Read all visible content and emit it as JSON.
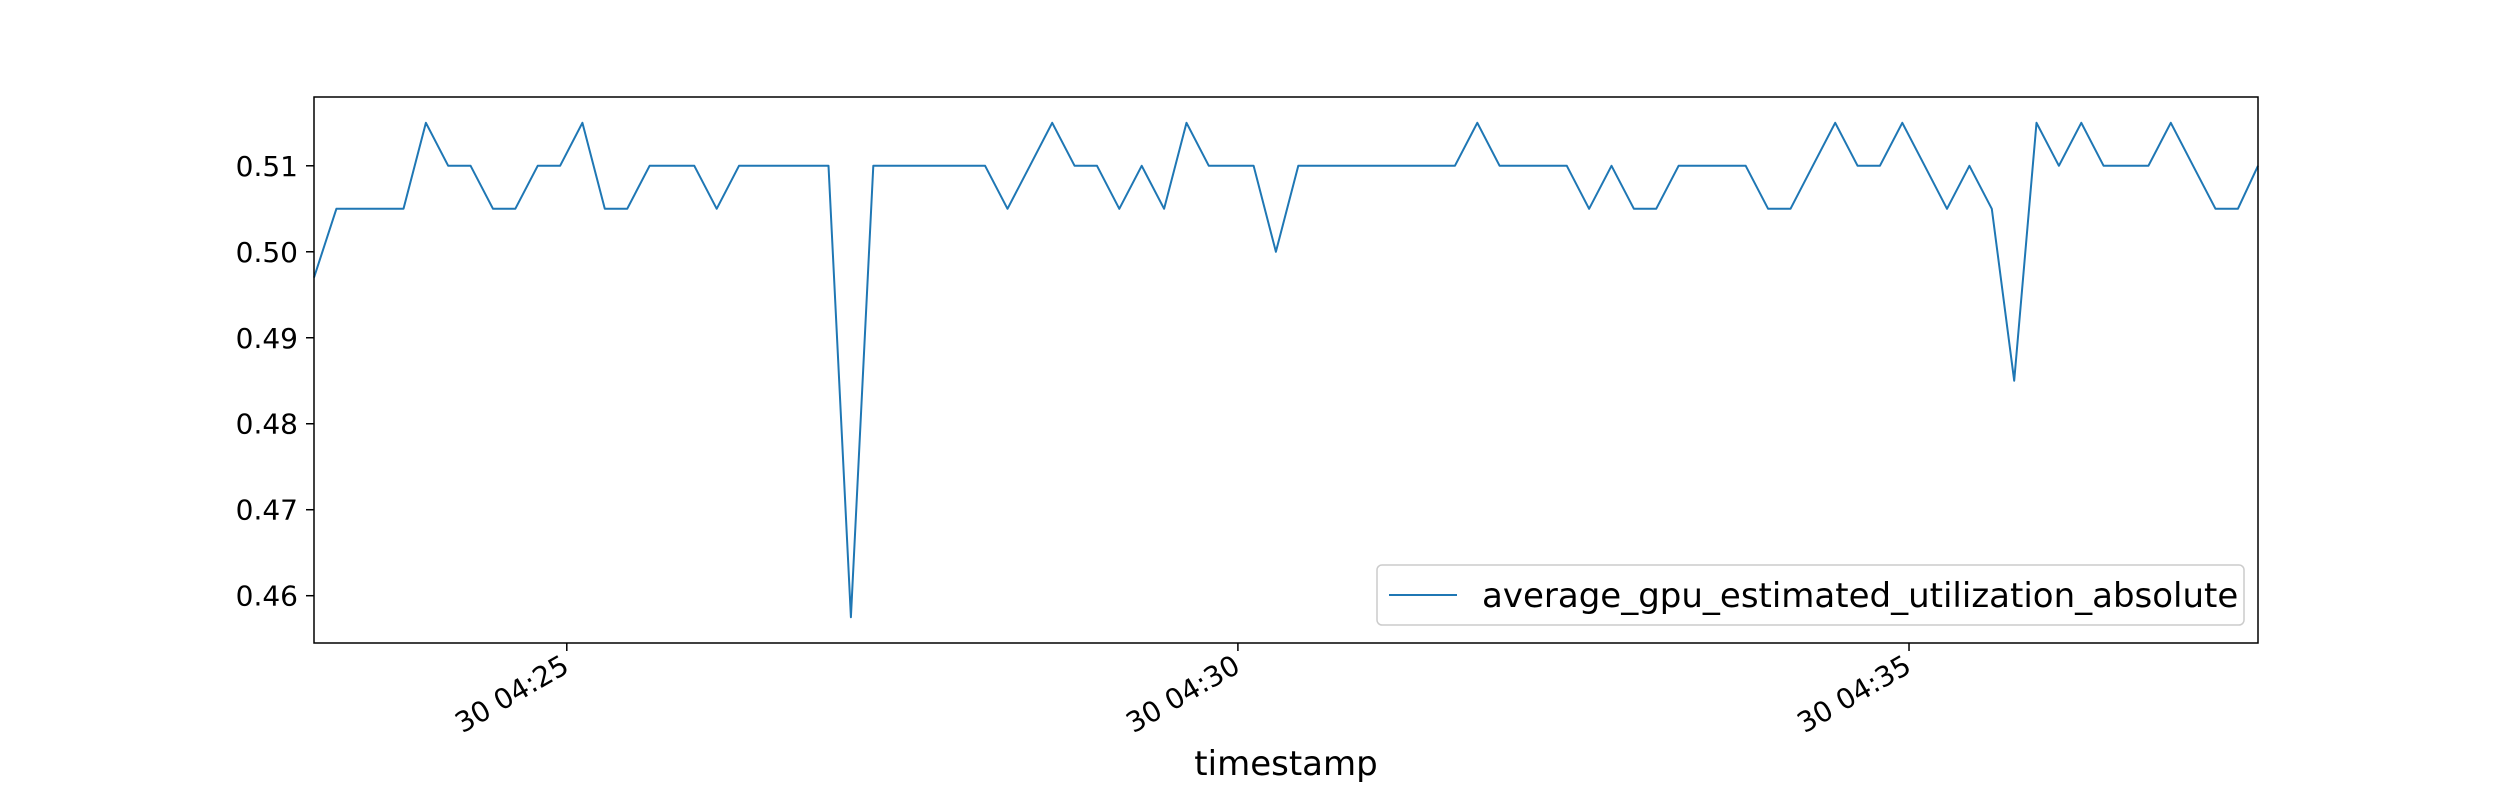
{
  "chart_data": {
    "type": "line",
    "title": "",
    "xlabel": "timestamp",
    "ylabel": "",
    "grid": false,
    "legend_placement": "lower-right",
    "series_color": "#1f77b4",
    "x_unit": "minutes",
    "xlim": [
      "04:23:07",
      "04:37:36"
    ],
    "ylim": [
      0.4545,
      0.518
    ],
    "x_ticks": [
      {
        "value": "04:25:00",
        "label": "30 04:25"
      },
      {
        "value": "04:30:00",
        "label": "30 04:30"
      },
      {
        "value": "04:35:00",
        "label": "30 04:35"
      }
    ],
    "y_ticks": [
      {
        "value": 0.46,
        "label": "0.46"
      },
      {
        "value": 0.47,
        "label": "0.47"
      },
      {
        "value": 0.48,
        "label": "0.48"
      },
      {
        "value": 0.49,
        "label": "0.49"
      },
      {
        "value": 0.5,
        "label": "0.50"
      },
      {
        "value": 0.51,
        "label": "0.51"
      }
    ],
    "series": [
      {
        "name": "average_gpu_estimated_utilization_absolute",
        "x": [
          "04:23:07",
          "04:23:17",
          "04:23:27",
          "04:23:37",
          "04:23:47",
          "04:23:57",
          "04:24:07",
          "04:24:17",
          "04:24:27",
          "04:24:37",
          "04:24:47",
          "04:24:57",
          "04:25:07",
          "04:25:17",
          "04:25:27",
          "04:25:37",
          "04:25:47",
          "04:25:57",
          "04:26:07",
          "04:26:17",
          "04:26:27",
          "04:26:37",
          "04:26:47",
          "04:26:57",
          "04:27:07",
          "04:27:17",
          "04:27:27",
          "04:27:37",
          "04:27:47",
          "04:27:57",
          "04:28:07",
          "04:28:17",
          "04:28:27",
          "04:28:37",
          "04:28:47",
          "04:28:57",
          "04:29:07",
          "04:29:17",
          "04:29:27",
          "04:29:37",
          "04:29:47",
          "04:29:57",
          "04:30:07",
          "04:30:17",
          "04:30:27",
          "04:30:37",
          "04:30:47",
          "04:30:57",
          "04:31:07",
          "04:31:17",
          "04:31:27",
          "04:31:37",
          "04:31:47",
          "04:31:57",
          "04:32:07",
          "04:32:17",
          "04:32:27",
          "04:32:37",
          "04:32:47",
          "04:32:57",
          "04:33:07",
          "04:33:17",
          "04:33:27",
          "04:33:37",
          "04:33:47",
          "04:33:57",
          "04:34:07",
          "04:34:17",
          "04:34:27",
          "04:34:37",
          "04:34:47",
          "04:34:57",
          "04:35:07",
          "04:35:17",
          "04:35:27",
          "04:35:37",
          "04:35:47",
          "04:35:57",
          "04:36:07",
          "04:36:17",
          "04:36:27",
          "04:36:37",
          "04:36:47",
          "04:36:57",
          "04:37:07",
          "04:37:17",
          "04:37:27",
          "04:37:36"
        ],
        "y": [
          0.497,
          0.505,
          0.505,
          0.505,
          0.505,
          0.515,
          0.51,
          0.51,
          0.505,
          0.505,
          0.51,
          0.51,
          0.515,
          0.505,
          0.505,
          0.51,
          0.51,
          0.51,
          0.505,
          0.51,
          0.51,
          0.51,
          0.51,
          0.51,
          0.4575,
          0.51,
          0.51,
          0.51,
          0.51,
          0.51,
          0.51,
          0.505,
          0.51,
          0.515,
          0.51,
          0.51,
          0.505,
          0.51,
          0.505,
          0.515,
          0.51,
          0.51,
          0.51,
          0.5,
          0.51,
          0.51,
          0.51,
          0.51,
          0.51,
          0.51,
          0.51,
          0.51,
          0.515,
          0.51,
          0.51,
          0.51,
          0.51,
          0.505,
          0.51,
          0.505,
          0.505,
          0.51,
          0.51,
          0.51,
          0.51,
          0.505,
          0.505,
          0.51,
          0.515,
          0.51,
          0.51,
          0.515,
          0.51,
          0.505,
          0.51,
          0.505,
          0.485,
          0.515,
          0.51,
          0.515,
          0.51,
          0.51,
          0.51,
          0.515,
          0.51,
          0.505,
          0.505,
          0.51
        ]
      }
    ]
  }
}
